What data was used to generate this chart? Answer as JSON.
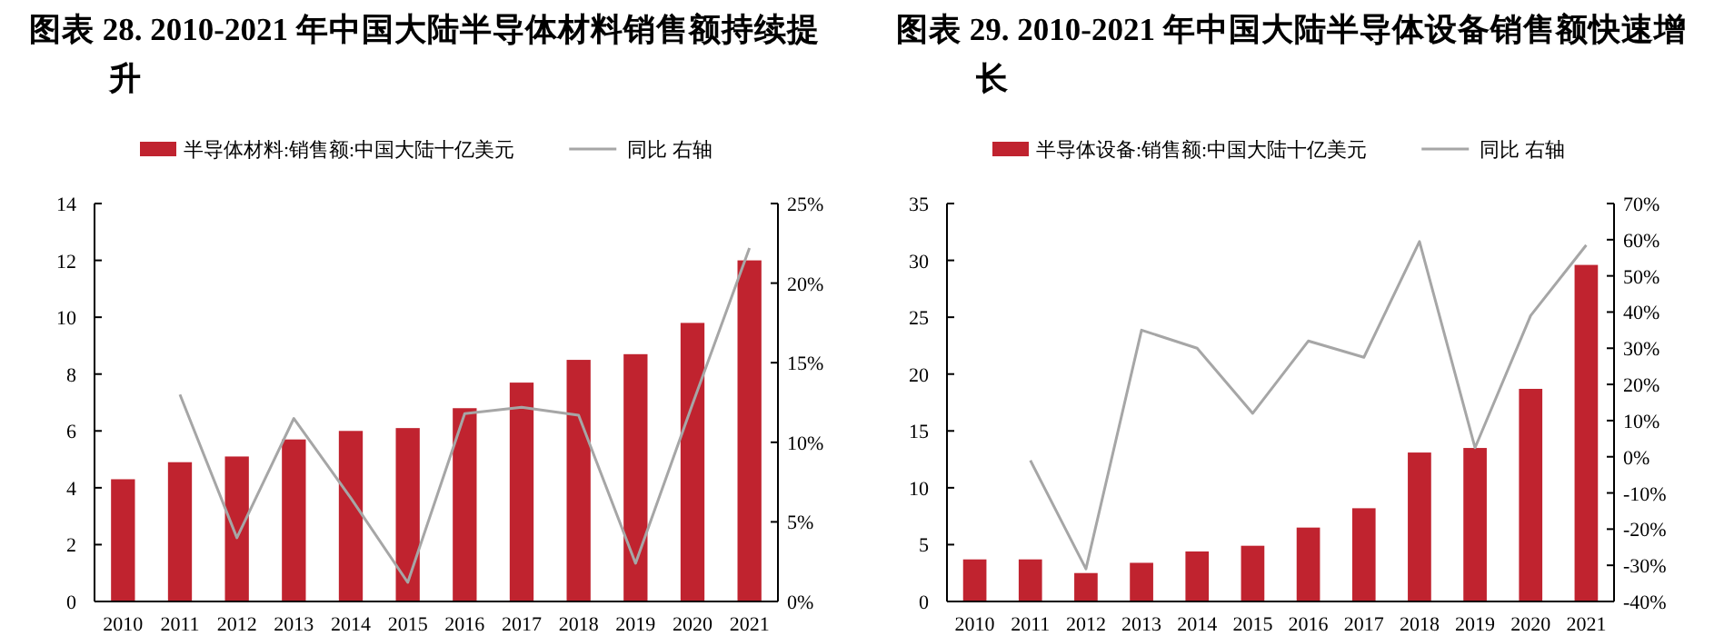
{
  "chart_data": [
    {
      "type": "bar",
      "title": "图表 28. 2010-2021 年中国大陆半导体材料销售额持续提升",
      "categories": [
        "2010",
        "2011",
        "2012",
        "2013",
        "2014",
        "2015",
        "2016",
        "2017",
        "2018",
        "2019",
        "2020",
        "2021"
      ],
      "series": [
        {
          "name": "半导体材料:销售额:中国大陆十亿美元",
          "color": "#c0232f",
          "values": [
            4.3,
            4.9,
            5.1,
            5.7,
            6.0,
            6.1,
            6.8,
            7.7,
            8.5,
            8.7,
            9.8,
            12.0
          ]
        },
        {
          "name": "同比 右轴",
          "type": "line",
          "axis": "y2",
          "color": "#a6a6a6",
          "values": [
            null,
            13.0,
            4.0,
            11.5,
            6.5,
            1.2,
            11.8,
            12.2,
            11.7,
            2.4,
            12.4,
            22.2
          ]
        }
      ],
      "ylim": [
        0,
        14
      ],
      "yticks": [
        0,
        2,
        4,
        6,
        8,
        10,
        12,
        14
      ],
      "y2lim": [
        0,
        25
      ],
      "y2ticks": [
        {
          "value": 0,
          "label": "0%"
        },
        {
          "value": 5,
          "label": "5%"
        },
        {
          "value": 10,
          "label": "10%"
        },
        {
          "value": 15,
          "label": "15%"
        },
        {
          "value": 20,
          "label": "20%"
        },
        {
          "value": 25,
          "label": "25%"
        }
      ],
      "legend": "top",
      "grid": false
    },
    {
      "type": "bar",
      "title": "图表 29. 2010-2021 年中国大陆半导体设备销售额快速增长",
      "categories": [
        "2010",
        "2011",
        "2012",
        "2013",
        "2014",
        "2015",
        "2016",
        "2017",
        "2018",
        "2019",
        "2020",
        "2021"
      ],
      "series": [
        {
          "name": "半导体设备:销售额:中国大陆十亿美元",
          "color": "#c0232f",
          "values": [
            3.7,
            3.7,
            2.5,
            3.4,
            4.4,
            4.9,
            6.5,
            8.2,
            13.1,
            13.5,
            18.7,
            29.6
          ]
        },
        {
          "name": "同比 右轴",
          "type": "line",
          "axis": "y2",
          "color": "#a6a6a6",
          "values": [
            null,
            -1,
            -31,
            35,
            30,
            12,
            32,
            27.5,
            59.5,
            2.5,
            39,
            58.5
          ]
        }
      ],
      "ylim": [
        0,
        35
      ],
      "yticks": [
        0,
        5,
        10,
        15,
        20,
        25,
        30,
        35
      ],
      "y2lim": [
        -40,
        70
      ],
      "y2ticks": [
        {
          "value": -40,
          "label": "-40%"
        },
        {
          "value": -30,
          "label": "-30%"
        },
        {
          "value": -20,
          "label": "-20%"
        },
        {
          "value": -10,
          "label": "-10%"
        },
        {
          "value": 0,
          "label": "0%"
        },
        {
          "value": 10,
          "label": "10%"
        },
        {
          "value": 20,
          "label": "20%"
        },
        {
          "value": 30,
          "label": "30%"
        },
        {
          "value": 40,
          "label": "40%"
        },
        {
          "value": 50,
          "label": "50%"
        },
        {
          "value": 60,
          "label": "60%"
        },
        {
          "value": 70,
          "label": "70%"
        }
      ],
      "legend": "top",
      "grid": false
    }
  ]
}
